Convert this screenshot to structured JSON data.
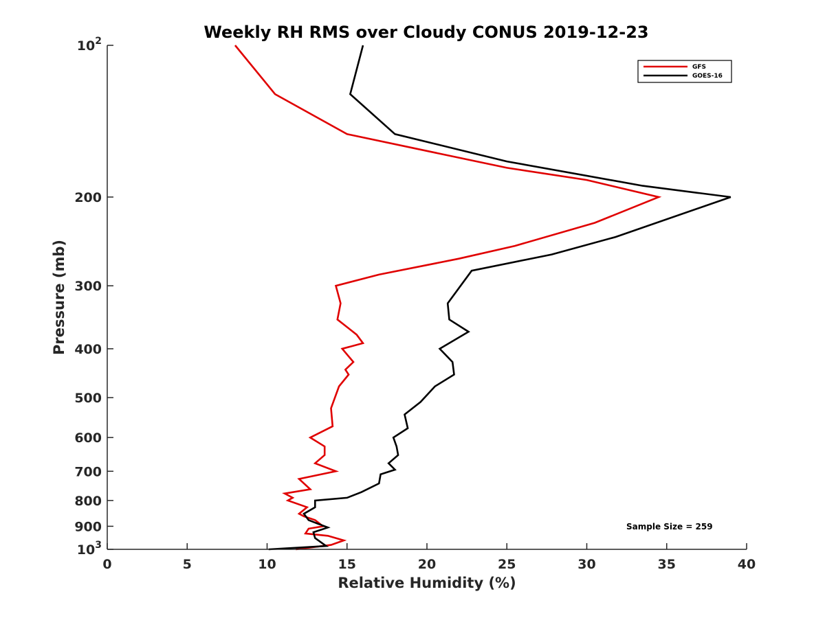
{
  "chart_data": {
    "type": "line",
    "title": "Weekly RH RMS over Cloudy CONUS 2019-12-23",
    "xlabel": "Relative Humidity (%)",
    "ylabel": "Pressure (mb)",
    "x_range": [
      0,
      40
    ],
    "y_range": [
      100,
      1000
    ],
    "y_scale": "log",
    "y_reversed": true,
    "grid": false,
    "legend_position": "top-right",
    "x_ticks": [
      "0",
      "5",
      "10",
      "15",
      "20",
      "25",
      "30",
      "35",
      "40"
    ],
    "y_ticks": [
      {
        "value": 100,
        "base": "10",
        "exp": "2"
      },
      {
        "value": 200,
        "label": "200"
      },
      {
        "value": 300,
        "label": "300"
      },
      {
        "value": 400,
        "label": "400"
      },
      {
        "value": 500,
        "label": "500"
      },
      {
        "value": 600,
        "label": "600"
      },
      {
        "value": 700,
        "label": "700"
      },
      {
        "value": 800,
        "label": "800"
      },
      {
        "value": 900,
        "label": "900"
      },
      {
        "value": 1000,
        "base": "10",
        "exp": "3"
      }
    ],
    "annotation": "Sample Size = 259",
    "series": [
      {
        "name": "GFS",
        "color": "#e00000",
        "points": [
          [
            8.0,
            100
          ],
          [
            10.5,
            125
          ],
          [
            15.0,
            150
          ],
          [
            25.0,
            175
          ],
          [
            30.0,
            185
          ],
          [
            34.5,
            200
          ],
          [
            30.5,
            225
          ],
          [
            25.5,
            250
          ],
          [
            22.0,
            265
          ],
          [
            17.0,
            285
          ],
          [
            14.3,
            300
          ],
          [
            14.6,
            325
          ],
          [
            14.4,
            350
          ],
          [
            15.6,
            375
          ],
          [
            16.0,
            390
          ],
          [
            14.7,
            400
          ],
          [
            15.4,
            425
          ],
          [
            14.9,
            440
          ],
          [
            15.1,
            450
          ],
          [
            14.5,
            475
          ],
          [
            14.0,
            525
          ],
          [
            14.1,
            570
          ],
          [
            12.7,
            600
          ],
          [
            13.6,
            625
          ],
          [
            13.6,
            650
          ],
          [
            13.0,
            675
          ],
          [
            14.3,
            700
          ],
          [
            12.0,
            725
          ],
          [
            12.7,
            760
          ],
          [
            11.1,
            775
          ],
          [
            11.6,
            790
          ],
          [
            11.3,
            800
          ],
          [
            12.5,
            825
          ],
          [
            12.0,
            850
          ],
          [
            12.3,
            860
          ],
          [
            13.0,
            875
          ],
          [
            13.5,
            900
          ],
          [
            12.6,
            910
          ],
          [
            12.4,
            930
          ],
          [
            13.8,
            940
          ],
          [
            14.8,
            960
          ],
          [
            14.0,
            980
          ],
          [
            11.8,
            1000
          ]
        ]
      },
      {
        "name": "GOES-16",
        "color": "#000000",
        "points": [
          [
            16.0,
            100
          ],
          [
            15.2,
            125
          ],
          [
            18.0,
            150
          ],
          [
            25.0,
            170
          ],
          [
            33.5,
            190
          ],
          [
            39.0,
            200
          ],
          [
            31.8,
            240
          ],
          [
            27.8,
            260
          ],
          [
            22.8,
            280
          ],
          [
            21.3,
            325
          ],
          [
            21.4,
            350
          ],
          [
            22.6,
            370
          ],
          [
            20.8,
            400
          ],
          [
            21.6,
            425
          ],
          [
            21.7,
            450
          ],
          [
            20.5,
            475
          ],
          [
            19.6,
            510
          ],
          [
            18.6,
            540
          ],
          [
            18.8,
            575
          ],
          [
            17.9,
            600
          ],
          [
            18.1,
            625
          ],
          [
            18.2,
            650
          ],
          [
            17.6,
            675
          ],
          [
            18.0,
            695
          ],
          [
            17.1,
            710
          ],
          [
            17.0,
            740
          ],
          [
            15.9,
            770
          ],
          [
            15.0,
            790
          ],
          [
            13.0,
            800
          ],
          [
            13.0,
            825
          ],
          [
            12.3,
            850
          ],
          [
            12.6,
            875
          ],
          [
            13.2,
            890
          ],
          [
            13.8,
            905
          ],
          [
            12.9,
            925
          ],
          [
            13.0,
            950
          ],
          [
            13.5,
            975
          ],
          [
            13.7,
            985
          ],
          [
            12.5,
            990
          ],
          [
            10.1,
            1000
          ]
        ]
      }
    ]
  }
}
